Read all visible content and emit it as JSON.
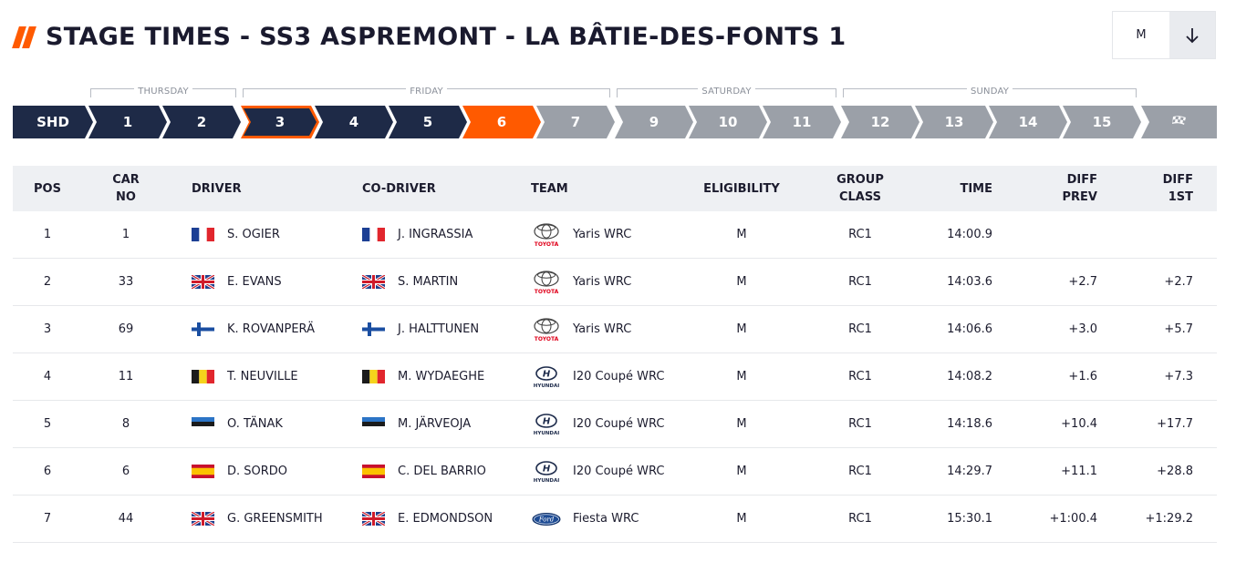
{
  "header": {
    "title": "STAGE TIMES - SS3 ASPREMONT - LA BÂTIE-DES-FONTS 1",
    "toggle_label": "M",
    "sort_icon": "arrow-down-icon",
    "accent_color": "#ff5a00"
  },
  "days": [
    {
      "label": "THURSDAY"
    },
    {
      "label": "FRIDAY"
    },
    {
      "label": "SATURDAY"
    },
    {
      "label": "SUNDAY"
    }
  ],
  "stages": [
    {
      "label": "SHD",
      "state": "completed"
    },
    {
      "label": "1",
      "state": "completed"
    },
    {
      "label": "2",
      "state": "completed"
    },
    {
      "label": "3",
      "state": "selected"
    },
    {
      "label": "4",
      "state": "completed"
    },
    {
      "label": "5",
      "state": "completed"
    },
    {
      "label": "6",
      "state": "live"
    },
    {
      "label": "7",
      "state": "upcoming"
    },
    {
      "label": "9",
      "state": "upcoming"
    },
    {
      "label": "10",
      "state": "upcoming"
    },
    {
      "label": "11",
      "state": "upcoming"
    },
    {
      "label": "12",
      "state": "upcoming"
    },
    {
      "label": "13",
      "state": "upcoming"
    },
    {
      "label": "14",
      "state": "upcoming"
    },
    {
      "label": "15",
      "state": "upcoming"
    },
    {
      "label": "",
      "state": "upcoming",
      "icon": "checkered-flag-icon"
    }
  ],
  "table": {
    "headers": {
      "pos": "POS",
      "car_line1": "CAR",
      "car_line2": "NO",
      "driver": "DRIVER",
      "codriver": "CO-DRIVER",
      "team": "TEAM",
      "eligibility": "ELIGIBILITY",
      "group_line1": "GROUP",
      "group_line2": "CLASS",
      "time": "TIME",
      "diffprev_line1": "DIFF",
      "diffprev_line2": "PREV",
      "diff1st_line1": "DIFF",
      "diff1st_line2": "1ST"
    },
    "rows": [
      {
        "pos": "1",
        "car": "1",
        "driver": "S. OGIER",
        "driver_flag": "france-flag-icon",
        "codriver": "J. INGRASSIA",
        "codriver_flag": "france-flag-icon",
        "team_logo": "toyota-logo-icon",
        "team": "Yaris WRC",
        "eligibility": "M",
        "group": "RC1",
        "time": "14:00.9",
        "diff_prev": "",
        "diff_1st": ""
      },
      {
        "pos": "2",
        "car": "33",
        "driver": "E. EVANS",
        "driver_flag": "uk-flag-icon",
        "codriver": "S. MARTIN",
        "codriver_flag": "uk-flag-icon",
        "team_logo": "toyota-logo-icon",
        "team": "Yaris WRC",
        "eligibility": "M",
        "group": "RC1",
        "time": "14:03.6",
        "diff_prev": "+2.7",
        "diff_1st": "+2.7"
      },
      {
        "pos": "3",
        "car": "69",
        "driver": "K. ROVANPERÄ",
        "driver_flag": "finland-flag-icon",
        "codriver": "J. HALTTUNEN",
        "codriver_flag": "finland-flag-icon",
        "team_logo": "toyota-logo-icon",
        "team": "Yaris WRC",
        "eligibility": "M",
        "group": "RC1",
        "time": "14:06.6",
        "diff_prev": "+3.0",
        "diff_1st": "+5.7"
      },
      {
        "pos": "4",
        "car": "11",
        "driver": "T. NEUVILLE",
        "driver_flag": "belgium-flag-icon",
        "codriver": "M. WYDAEGHE",
        "codriver_flag": "belgium-flag-icon",
        "team_logo": "hyundai-logo-icon",
        "team": "I20 Coupé WRC",
        "eligibility": "M",
        "group": "RC1",
        "time": "14:08.2",
        "diff_prev": "+1.6",
        "diff_1st": "+7.3"
      },
      {
        "pos": "5",
        "car": "8",
        "driver": "O. TÄNAK",
        "driver_flag": "estonia-flag-icon",
        "codriver": "M. JÄRVEOJA",
        "codriver_flag": "estonia-flag-icon",
        "team_logo": "hyundai-logo-icon",
        "team": "I20 Coupé WRC",
        "eligibility": "M",
        "group": "RC1",
        "time": "14:18.6",
        "diff_prev": "+10.4",
        "diff_1st": "+17.7"
      },
      {
        "pos": "6",
        "car": "6",
        "driver": "D. SORDO",
        "driver_flag": "spain-flag-icon",
        "codriver": "C. DEL BARRIO",
        "codriver_flag": "spain-flag-icon",
        "team_logo": "hyundai-logo-icon",
        "team": "I20 Coupé WRC",
        "eligibility": "M",
        "group": "RC1",
        "time": "14:29.7",
        "diff_prev": "+11.1",
        "diff_1st": "+28.8"
      },
      {
        "pos": "7",
        "car": "44",
        "driver": "G. GREENSMITH",
        "driver_flag": "uk-flag-icon",
        "codriver": "E. EDMONDSON",
        "codriver_flag": "uk-flag-icon",
        "team_logo": "ford-logo-icon",
        "team": "Fiesta WRC",
        "eligibility": "M",
        "group": "RC1",
        "time": "15:30.1",
        "diff_prev": "+1:00.4",
        "diff_1st": "+1:29.2"
      }
    ]
  }
}
